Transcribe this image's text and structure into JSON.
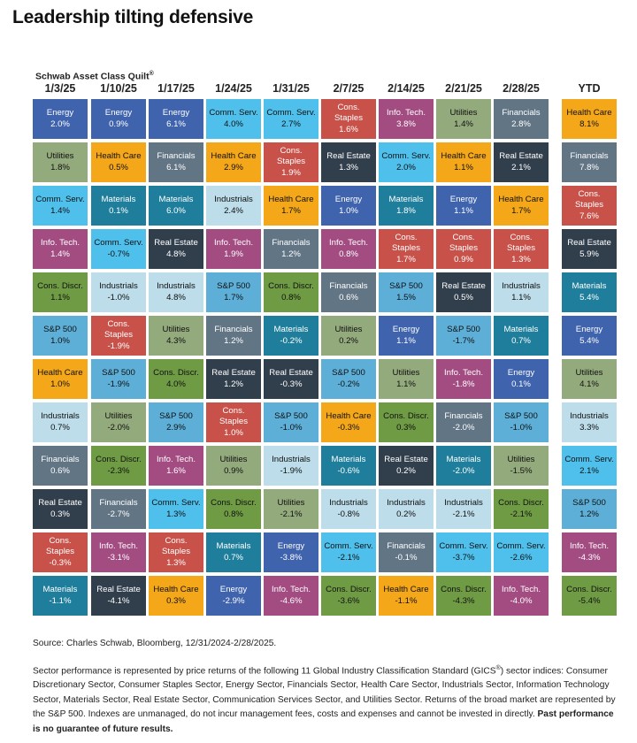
{
  "title": "Leadership tilting defensive",
  "quilt_label": "Schwab Asset Class Quilt",
  "quilt_label_mark": "®",
  "chart_data": {
    "type": "table",
    "columns": [
      {
        "header": "1/3/25",
        "cells": [
          {
            "name": "Energy",
            "value": "2.0%"
          },
          {
            "name": "Utilities",
            "value": "1.8%"
          },
          {
            "name": "Comm. Serv.",
            "value": "1.4%"
          },
          {
            "name": "Info. Tech.",
            "value": "1.4%"
          },
          {
            "name": "Cons. Discr.",
            "value": "1.1%"
          },
          {
            "name": "S&P 500",
            "value": "1.0%"
          },
          {
            "name": "Health Care",
            "value": "1.0%"
          },
          {
            "name": "Industrials",
            "value": "0.7%"
          },
          {
            "name": "Financials",
            "value": "0.6%"
          },
          {
            "name": "Real Estate",
            "value": "0.3%"
          },
          {
            "name": "Cons. Staples",
            "value": "-0.3%"
          },
          {
            "name": "Materials",
            "value": "-1.1%"
          }
        ]
      },
      {
        "header": "1/10/25",
        "cells": [
          {
            "name": "Energy",
            "value": "0.9%"
          },
          {
            "name": "Health Care",
            "value": "0.5%"
          },
          {
            "name": "Materials",
            "value": "0.1%"
          },
          {
            "name": "Comm. Serv.",
            "value": "-0.7%"
          },
          {
            "name": "Industrials",
            "value": "-1.0%"
          },
          {
            "name": "Cons. Staples",
            "value": "-1.9%"
          },
          {
            "name": "S&P 500",
            "value": "-1.9%"
          },
          {
            "name": "Utilities",
            "value": "-2.0%"
          },
          {
            "name": "Cons. Discr.",
            "value": "-2.3%"
          },
          {
            "name": "Financials",
            "value": "-2.7%"
          },
          {
            "name": "Info. Tech.",
            "value": "-3.1%"
          },
          {
            "name": "Real Estate",
            "value": "-4.1%"
          }
        ]
      },
      {
        "header": "1/17/25",
        "cells": [
          {
            "name": "Energy",
            "value": "6.1%"
          },
          {
            "name": "Financials",
            "value": "6.1%"
          },
          {
            "name": "Materials",
            "value": "6.0%"
          },
          {
            "name": "Real Estate",
            "value": "4.8%"
          },
          {
            "name": "Industrials",
            "value": "4.8%"
          },
          {
            "name": "Utilities",
            "value": "4.3%"
          },
          {
            "name": "Cons. Discr.",
            "value": "4.0%"
          },
          {
            "name": "S&P 500",
            "value": "2.9%"
          },
          {
            "name": "Info. Tech.",
            "value": "1.6%"
          },
          {
            "name": "Comm. Serv.",
            "value": "1.3%"
          },
          {
            "name": "Cons. Staples",
            "value": "1.3%"
          },
          {
            "name": "Health Care",
            "value": "0.3%"
          }
        ]
      },
      {
        "header": "1/24/25",
        "cells": [
          {
            "name": "Comm. Serv.",
            "value": "4.0%"
          },
          {
            "name": "Health Care",
            "value": "2.9%"
          },
          {
            "name": "Industrials",
            "value": "2.4%"
          },
          {
            "name": "Info. Tech.",
            "value": "1.9%"
          },
          {
            "name": "S&P 500",
            "value": "1.7%"
          },
          {
            "name": "Financials",
            "value": "1.2%"
          },
          {
            "name": "Real Estate",
            "value": "1.2%"
          },
          {
            "name": "Cons. Staples",
            "value": "1.0%"
          },
          {
            "name": "Utilities",
            "value": "0.9%"
          },
          {
            "name": "Cons. Discr.",
            "value": "0.8%"
          },
          {
            "name": "Materials",
            "value": "0.7%"
          },
          {
            "name": "Energy",
            "value": "-2.9%"
          }
        ]
      },
      {
        "header": "1/31/25",
        "cells": [
          {
            "name": "Comm. Serv.",
            "value": "2.7%"
          },
          {
            "name": "Cons. Staples",
            "value": "1.9%"
          },
          {
            "name": "Health Care",
            "value": "1.7%"
          },
          {
            "name": "Financials",
            "value": "1.2%"
          },
          {
            "name": "Cons. Discr.",
            "value": "0.8%"
          },
          {
            "name": "Materials",
            "value": "-0.2%"
          },
          {
            "name": "Real Estate",
            "value": "-0.3%"
          },
          {
            "name": "S&P 500",
            "value": "-1.0%"
          },
          {
            "name": "Industrials",
            "value": "-1.9%"
          },
          {
            "name": "Utilities",
            "value": "-2.1%"
          },
          {
            "name": "Energy",
            "value": "-3.8%"
          },
          {
            "name": "Info. Tech.",
            "value": "-4.6%"
          }
        ]
      },
      {
        "header": "2/7/25",
        "cells": [
          {
            "name": "Cons. Staples",
            "value": "1.6%"
          },
          {
            "name": "Real Estate",
            "value": "1.3%"
          },
          {
            "name": "Energy",
            "value": "1.0%"
          },
          {
            "name": "Info. Tech.",
            "value": "0.8%"
          },
          {
            "name": "Financials",
            "value": "0.6%"
          },
          {
            "name": "Utilities",
            "value": "0.2%"
          },
          {
            "name": "S&P 500",
            "value": "-0.2%"
          },
          {
            "name": "Health Care",
            "value": "-0.3%"
          },
          {
            "name": "Materials",
            "value": "-0.6%"
          },
          {
            "name": "Industrials",
            "value": "-0.8%"
          },
          {
            "name": "Comm. Serv.",
            "value": "-2.1%"
          },
          {
            "name": "Cons. Discr.",
            "value": "-3.6%"
          }
        ]
      },
      {
        "header": "2/14/25",
        "cells": [
          {
            "name": "Info. Tech.",
            "value": "3.8%"
          },
          {
            "name": "Comm. Serv.",
            "value": "2.0%"
          },
          {
            "name": "Materials",
            "value": "1.8%"
          },
          {
            "name": "Cons. Staples",
            "value": "1.7%"
          },
          {
            "name": "S&P 500",
            "value": "1.5%"
          },
          {
            "name": "Energy",
            "value": "1.1%"
          },
          {
            "name": "Utilities",
            "value": "1.1%"
          },
          {
            "name": "Cons. Discr.",
            "value": "0.3%"
          },
          {
            "name": "Real Estate",
            "value": "0.2%"
          },
          {
            "name": "Industrials",
            "value": "0.2%"
          },
          {
            "name": "Financials",
            "value": "-0.1%"
          },
          {
            "name": "Health Care",
            "value": "-1.1%"
          }
        ]
      },
      {
        "header": "2/21/25",
        "cells": [
          {
            "name": "Utilities",
            "value": "1.4%"
          },
          {
            "name": "Health Care",
            "value": "1.1%"
          },
          {
            "name": "Energy",
            "value": "1.1%"
          },
          {
            "name": "Cons. Staples",
            "value": "0.9%"
          },
          {
            "name": "Real Estate",
            "value": "0.5%"
          },
          {
            "name": "S&P 500",
            "value": "-1.7%"
          },
          {
            "name": "Info. Tech.",
            "value": "-1.8%"
          },
          {
            "name": "Financials",
            "value": "-2.0%"
          },
          {
            "name": "Materials",
            "value": "-2.0%"
          },
          {
            "name": "Industrials",
            "value": "-2.1%"
          },
          {
            "name": "Comm. Serv.",
            "value": "-3.7%"
          },
          {
            "name": "Cons. Discr.",
            "value": "-4.3%"
          }
        ]
      },
      {
        "header": "2/28/25",
        "cells": [
          {
            "name": "Financials",
            "value": "2.8%"
          },
          {
            "name": "Real Estate",
            "value": "2.1%"
          },
          {
            "name": "Health Care",
            "value": "1.7%"
          },
          {
            "name": "Cons. Staples",
            "value": "1.3%"
          },
          {
            "name": "Industrials",
            "value": "1.1%"
          },
          {
            "name": "Materials",
            "value": "0.7%"
          },
          {
            "name": "Energy",
            "value": "0.1%"
          },
          {
            "name": "S&P 500",
            "value": "-1.0%"
          },
          {
            "name": "Utilities",
            "value": "-1.5%"
          },
          {
            "name": "Cons. Discr.",
            "value": "-2.1%"
          },
          {
            "name": "Comm. Serv.",
            "value": "-2.6%"
          },
          {
            "name": "Info. Tech.",
            "value": "-4.0%"
          }
        ]
      },
      {
        "header": "YTD",
        "cells": [
          {
            "name": "Health Care",
            "value": "8.1%"
          },
          {
            "name": "Financials",
            "value": "7.8%"
          },
          {
            "name": "Cons. Staples",
            "value": "7.6%"
          },
          {
            "name": "Real Estate",
            "value": "5.9%"
          },
          {
            "name": "Materials",
            "value": "5.4%"
          },
          {
            "name": "Energy",
            "value": "5.4%"
          },
          {
            "name": "Utilities",
            "value": "4.1%"
          },
          {
            "name": "Industrials",
            "value": "3.3%"
          },
          {
            "name": "Comm. Serv.",
            "value": "2.1%"
          },
          {
            "name": "S&P 500",
            "value": "1.2%"
          },
          {
            "name": "Info. Tech.",
            "value": "-4.3%"
          },
          {
            "name": "Cons. Discr.",
            "value": "-5.4%"
          }
        ]
      }
    ],
    "sector_colors": {
      "Energy": {
        "bg": "#3f63ad",
        "fg": "#ffffff"
      },
      "Utilities": {
        "bg": "#93aa7c",
        "fg": "#111111"
      },
      "Comm. Serv.": {
        "bg": "#4fc0ec",
        "fg": "#111111"
      },
      "Info. Tech.": {
        "bg": "#a24c82",
        "fg": "#ffffff"
      },
      "Cons. Discr.": {
        "bg": "#6e9b43",
        "fg": "#111111"
      },
      "S&P 500": {
        "bg": "#5dafd8",
        "fg": "#111111"
      },
      "Health Care": {
        "bg": "#f5a71a",
        "fg": "#111111"
      },
      "Industrials": {
        "bg": "#bcdde9",
        "fg": "#111111"
      },
      "Financials": {
        "bg": "#627585",
        "fg": "#ffffff"
      },
      "Real Estate": {
        "bg": "#313f4d",
        "fg": "#ffffff"
      },
      "Cons. Staples": {
        "bg": "#c8524a",
        "fg": "#ffffff"
      },
      "Materials": {
        "bg": "#1f7e9b",
        "fg": "#ffffff"
      }
    }
  },
  "notes": {
    "source": "Source: Charles Schwab, Bloomberg, 12/31/2024-2/28/2025.",
    "body_part1": "Sector performance is represented by price returns of the following 11 Global Industry Classification Standard (GICS",
    "body_mark": "®",
    "body_part2": ") sector indices: Consumer Discretionary Sector, Consumer Staples Sector, Energy Sector, Financials Sector, Health Care Sector, Industrials Sector, Information Technology Sector, Materials Sector, Real Estate Sector, Communication Services Sector, and Utilities Sector. Returns of the broad market are represented by the S&P 500. Indexes are unmanaged, do not incur management fees, costs and expenses and cannot be invested in directly. ",
    "disclaimer": "Past performance is no guarantee of future results."
  }
}
